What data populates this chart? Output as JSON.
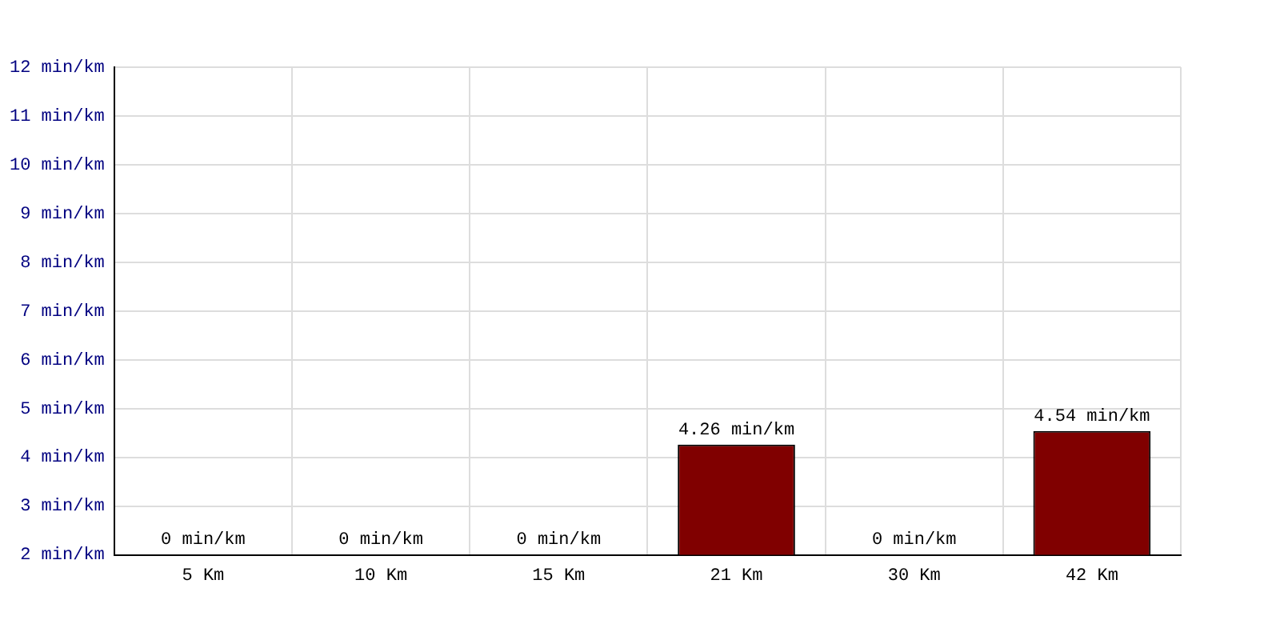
{
  "chart_data": {
    "type": "bar",
    "categories": [
      "5 Km",
      "10 Km",
      "15 Km",
      "21 Km",
      "30 Km",
      "42 Km"
    ],
    "values": [
      null,
      null,
      null,
      4.26,
      null,
      4.54
    ],
    "value_labels": [
      "0 min/km",
      "0 min/km",
      "0 min/km",
      "4.26 min/km",
      "0 min/km",
      "4.54 min/km"
    ],
    "color": "#800000",
    "ylim": [
      2,
      12
    ],
    "yticks": [
      {
        "value": 2,
        "label": "2 min/km"
      },
      {
        "value": 3,
        "label": "3 min/km"
      },
      {
        "value": 4,
        "label": "4 min/km"
      },
      {
        "value": 5,
        "label": "5 min/km"
      },
      {
        "value": 6,
        "label": "6 min/km"
      },
      {
        "value": 7,
        "label": "7 min/km"
      },
      {
        "value": 8,
        "label": "8 min/km"
      },
      {
        "value": 9,
        "label": "9 min/km"
      },
      {
        "value": 10,
        "label": "10 min/km"
      },
      {
        "value": 11,
        "label": "11 min/km"
      },
      {
        "value": 12,
        "label": "12 min/km"
      }
    ],
    "grid": true,
    "legend": false
  }
}
